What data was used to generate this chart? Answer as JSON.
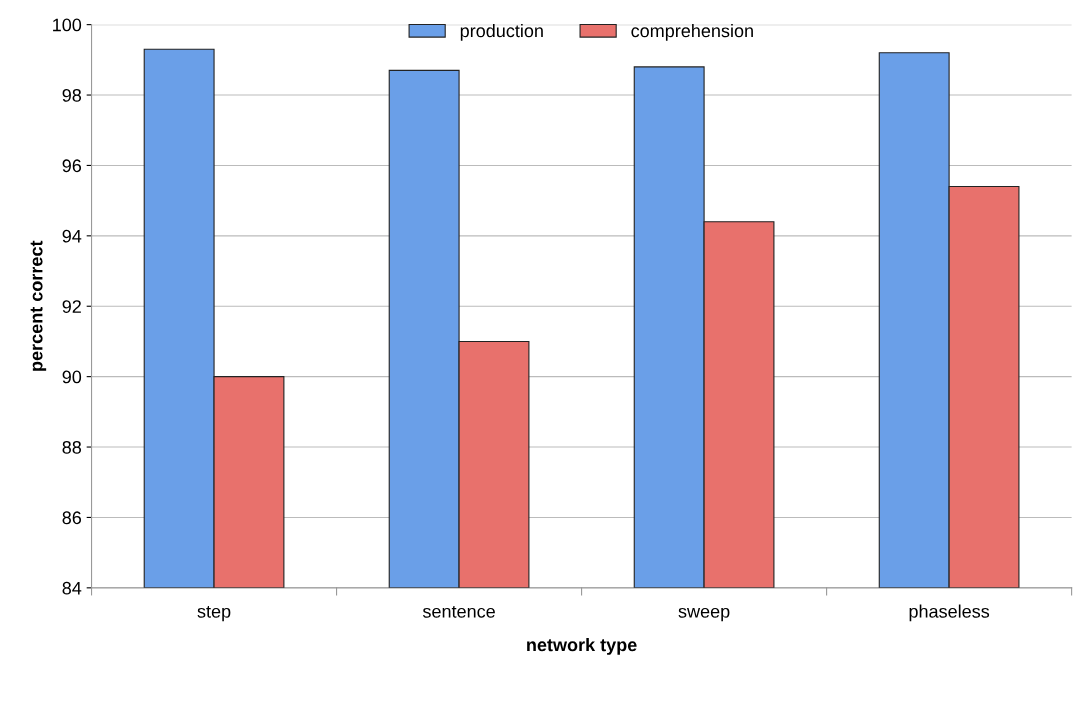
{
  "chart_data": {
    "type": "bar",
    "xlabel": "network type",
    "ylabel": "percent correct",
    "categories": [
      "step",
      "sentence",
      "sweep",
      "phaseless"
    ],
    "series": [
      {
        "name": "production",
        "color": "#6a9fe8",
        "values": [
          99.3,
          98.7,
          98.8,
          99.2
        ]
      },
      {
        "name": "comprehension",
        "color": "#e8716c",
        "values": [
          90.0,
          91.0,
          94.4,
          95.4
        ]
      }
    ],
    "ylim": [
      84,
      100
    ],
    "yticks": [
      84,
      86,
      88,
      90,
      92,
      94,
      96,
      98,
      100
    ],
    "grid": "y",
    "legend": "top"
  }
}
